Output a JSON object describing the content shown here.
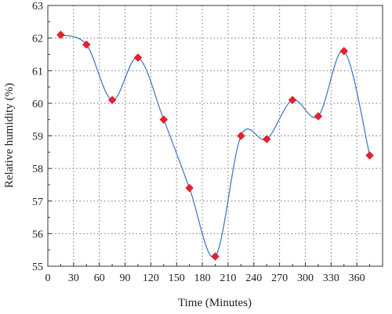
{
  "chart_data": {
    "type": "line",
    "xlabel": "Time (Minutes)",
    "ylabel": "Relative humidity (%)",
    "xlim": [
      0,
      390
    ],
    "ylim": [
      55,
      63
    ],
    "xticks": [
      0,
      30,
      60,
      90,
      120,
      150,
      180,
      210,
      240,
      270,
      300,
      330,
      360
    ],
    "yticks": [
      55,
      56,
      57,
      58,
      59,
      60,
      61,
      62,
      63
    ],
    "grid": true,
    "line_color": "#4a7cc0",
    "marker_color": "#e8202a",
    "marker": "diamond",
    "smooth": true,
    "series": [
      {
        "x": [
          15,
          45,
          75,
          105,
          135,
          165,
          195,
          225,
          255,
          285,
          315,
          345,
          375
        ],
        "values": [
          62.1,
          61.8,
          60.1,
          61.4,
          59.5,
          57.4,
          55.3,
          59.0,
          58.9,
          60.1,
          59.6,
          61.6,
          58.4
        ]
      }
    ]
  }
}
